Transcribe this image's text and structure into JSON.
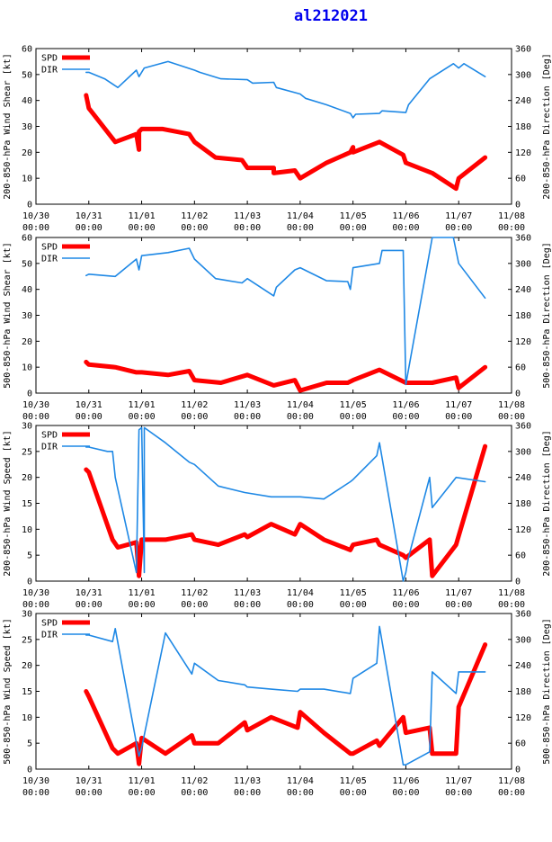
{
  "page_title": "al212021",
  "colors": {
    "spd": "#ff0000",
    "dir": "#1e88e5",
    "title": "#0000ee"
  },
  "chart_data": [
    {
      "type": "line",
      "ylabel_left": "200-850-hPa Wind Shear [kt]",
      "ylabel_right": "200-850-hPa Direction [Deg]",
      "ylim_left": [
        0,
        60
      ],
      "yticks_left": [
        0,
        10,
        20,
        30,
        40,
        50,
        60
      ],
      "ylim_right": [
        0,
        360
      ],
      "yticks_right": [
        0,
        60,
        120,
        180,
        240,
        300,
        360
      ],
      "xlim": [
        0,
        9
      ],
      "xticks": [
        "10/30\n00:00",
        "10/31\n00:00",
        "11/01\n00:00",
        "11/02\n00:00",
        "11/03\n00:00",
        "11/04\n00:00",
        "11/05\n00:00",
        "11/06\n00:00",
        "11/07\n00:00",
        "11/08\n00:00"
      ],
      "legend": [
        "SPD",
        "DIR"
      ],
      "series": [
        {
          "name": "SPD",
          "axis": "left",
          "x": [
            0.95,
            1.0,
            1.5,
            1.9,
            1.95,
            1.95,
            2.0,
            2.0,
            2.4,
            2.9,
            3.0,
            3.4,
            3.9,
            4.0,
            4.5,
            4.5,
            4.9,
            5.0,
            5.5,
            5.95,
            6.0,
            6.0,
            6.5,
            6.95,
            7.0,
            7.5,
            7.95,
            8.0,
            8.5
          ],
          "y": [
            42,
            37,
            24,
            27,
            21,
            28,
            29,
            29,
            29,
            27,
            24,
            18,
            17,
            14,
            14,
            12,
            13,
            10,
            16,
            20,
            22,
            20,
            24,
            19,
            16,
            12,
            6,
            10,
            18
          ]
        },
        {
          "name": "DIR",
          "axis": "right",
          "x": [
            0.95,
            1.0,
            1.3,
            1.55,
            1.9,
            1.95,
            2.05,
            2.5,
            3.0,
            3.1,
            3.5,
            4.0,
            4.1,
            4.5,
            4.55,
            5.0,
            5.1,
            5.5,
            5.95,
            6.0,
            6.05,
            6.5,
            6.55,
            7.0,
            7.05,
            7.45,
            7.9,
            8.0,
            8.1,
            8.5
          ],
          "y": [
            305,
            305,
            290,
            270,
            310,
            295,
            315,
            330,
            310,
            305,
            290,
            288,
            280,
            282,
            270,
            255,
            245,
            230,
            210,
            200,
            208,
            210,
            216,
            212,
            230,
            290,
            325,
            315,
            325,
            295
          ]
        }
      ]
    },
    {
      "type": "line",
      "ylabel_left": "500-850-hPa Wind Shear [kt]",
      "ylabel_right": "500-850-hPa Direction [Deg]",
      "ylim_left": [
        0,
        60
      ],
      "yticks_left": [
        0,
        10,
        20,
        30,
        40,
        50,
        60
      ],
      "ylim_right": [
        0,
        360
      ],
      "yticks_right": [
        0,
        60,
        120,
        180,
        240,
        300,
        360
      ],
      "xlim": [
        0,
        9
      ],
      "xticks": [
        "10/30\n00:00",
        "10/31\n00:00",
        "11/01\n00:00",
        "11/02\n00:00",
        "11/03\n00:00",
        "11/04\n00:00",
        "11/05\n00:00",
        "11/06\n00:00",
        "11/07\n00:00",
        "11/08\n00:00"
      ],
      "legend": [
        "SPD",
        "DIR"
      ],
      "series": [
        {
          "name": "SPD",
          "axis": "left",
          "x": [
            0.95,
            1.0,
            1.5,
            1.9,
            2.0,
            2.5,
            2.9,
            3.0,
            3.5,
            4.0,
            4.5,
            4.9,
            5.0,
            5.5,
            5.9,
            6.0,
            6.5,
            7.0,
            7.5,
            7.95,
            8.0,
            8.5
          ],
          "y": [
            12,
            11,
            10,
            8,
            8,
            7,
            8.5,
            5,
            4,
            7,
            3,
            5,
            1,
            4,
            4,
            5,
            9,
            4,
            4,
            6,
            2,
            10
          ]
        },
        {
          "name": "DIR",
          "axis": "right",
          "x": [
            0.95,
            1.0,
            1.5,
            1.9,
            1.95,
            2.0,
            2.5,
            2.9,
            3.0,
            3.4,
            3.9,
            4.0,
            4.5,
            4.55,
            4.9,
            5.0,
            5.5,
            5.9,
            5.95,
            6.0,
            6.5,
            6.55,
            6.95,
            7.0,
            7.5,
            7.9,
            8.0,
            8.5
          ],
          "y": [
            272,
            275,
            270,
            310,
            285,
            318,
            325,
            335,
            310,
            265,
            255,
            265,
            225,
            245,
            285,
            290,
            260,
            258,
            240,
            290,
            300,
            330,
            330,
            20,
            360,
            360,
            300,
            220
          ]
        }
      ]
    },
    {
      "type": "line",
      "ylabel_left": "200-850-hPa Wind Speed [kt]",
      "ylabel_right": "200-850-hPa Direction [Deg]",
      "ylim_left": [
        0,
        30
      ],
      "yticks_left": [
        0,
        5,
        10,
        15,
        20,
        25,
        30
      ],
      "ylim_right": [
        0,
        360
      ],
      "yticks_right": [
        0,
        60,
        120,
        180,
        240,
        300,
        360
      ],
      "xlim": [
        0,
        9
      ],
      "xticks": [
        "10/30\n00:00",
        "10/31\n00:00",
        "11/01\n00:00",
        "11/02\n00:00",
        "11/03\n00:00",
        "11/04\n00:00",
        "11/05\n00:00",
        "11/06\n00:00",
        "11/07\n00:00",
        "11/08\n00:00"
      ],
      "legend": [
        "SPD",
        "DIR"
      ],
      "series": [
        {
          "name": "SPD",
          "axis": "left",
          "x": [
            0.95,
            1.0,
            1.45,
            1.55,
            1.9,
            1.95,
            2.0,
            2.45,
            2.95,
            3.0,
            3.45,
            3.95,
            4.0,
            4.45,
            4.9,
            5.0,
            5.45,
            5.95,
            6.0,
            6.45,
            6.5,
            6.95,
            7.0,
            7.45,
            7.5,
            7.95,
            8.5
          ],
          "y": [
            21.5,
            21,
            8,
            6.5,
            7.5,
            1,
            8,
            8,
            9,
            8,
            7,
            9,
            8.5,
            11,
            9,
            11,
            8,
            6,
            7,
            8,
            7,
            5,
            4.5,
            8,
            1,
            7,
            26
          ]
        },
        {
          "name": "DIR",
          "axis": "right",
          "x": [
            0.95,
            1.0,
            1.35,
            1.45,
            1.5,
            1.9,
            1.95,
            2.0,
            2.05,
            2.05,
            2.45,
            2.9,
            3.0,
            3.45,
            3.95,
            4.45,
            5.0,
            5.45,
            5.95,
            6.0,
            6.45,
            6.5,
            6.95,
            7.0,
            7.05,
            7.45,
            7.5,
            7.95,
            8.5
          ],
          "y": [
            310,
            310,
            300,
            300,
            240,
            20,
            350,
            355,
            20,
            355,
            320,
            275,
            270,
            220,
            205,
            195,
            195,
            190,
            230,
            235,
            290,
            320,
            0,
            20,
            55,
            240,
            170,
            240,
            230
          ]
        }
      ]
    },
    {
      "type": "line",
      "ylabel_left": "500-850-hPa Wind Speed [kt]",
      "ylabel_right": "500-850-hPa Direction [Deg]",
      "ylim_left": [
        0,
        30
      ],
      "yticks_left": [
        0,
        5,
        10,
        15,
        20,
        25,
        30
      ],
      "ylim_right": [
        0,
        360
      ],
      "yticks_right": [
        0,
        60,
        120,
        180,
        240,
        300,
        360
      ],
      "xlim": [
        0,
        9
      ],
      "xticks": [
        "10/30\n00:00",
        "10/31\n00:00",
        "11/01\n00:00",
        "11/02\n00:00",
        "11/03\n00:00",
        "11/04\n00:00",
        "11/05\n00:00",
        "11/06\n00:00",
        "11/07\n00:00",
        "11/08\n00:00"
      ],
      "legend": [
        "SPD",
        "DIR"
      ],
      "series": [
        {
          "name": "SPD",
          "axis": "left",
          "x": [
            0.95,
            1.0,
            1.45,
            1.55,
            1.9,
            1.95,
            2.0,
            2.45,
            2.95,
            3.0,
            3.45,
            3.95,
            4.0,
            4.45,
            4.95,
            5.0,
            5.45,
            5.95,
            6.0,
            6.45,
            6.5,
            6.95,
            7.0,
            7.45,
            7.5,
            7.95,
            8.0,
            8.5
          ],
          "y": [
            15,
            14,
            4,
            3,
            5,
            1,
            6,
            3,
            6.5,
            5,
            5,
            9,
            7.5,
            10,
            8,
            11,
            7,
            3,
            3,
            5.5,
            4.5,
            10,
            7,
            8,
            3,
            3,
            12,
            24
          ]
        },
        {
          "name": "DIR",
          "axis": "right",
          "x": [
            0.95,
            1.0,
            1.45,
            1.5,
            1.9,
            1.95,
            2.0,
            2.45,
            2.95,
            3.0,
            3.45,
            3.95,
            4.0,
            4.45,
            4.95,
            5.0,
            5.45,
            5.95,
            6.0,
            6.45,
            6.5,
            6.95,
            7.0,
            7.45,
            7.5,
            7.95,
            8.0,
            8.5
          ],
          "y": [
            310,
            310,
            295,
            325,
            60,
            30,
            50,
            315,
            220,
            245,
            205,
            195,
            190,
            185,
            180,
            185,
            185,
            175,
            210,
            245,
            330,
            10,
            10,
            40,
            225,
            175,
            225,
            225
          ]
        }
      ]
    }
  ]
}
